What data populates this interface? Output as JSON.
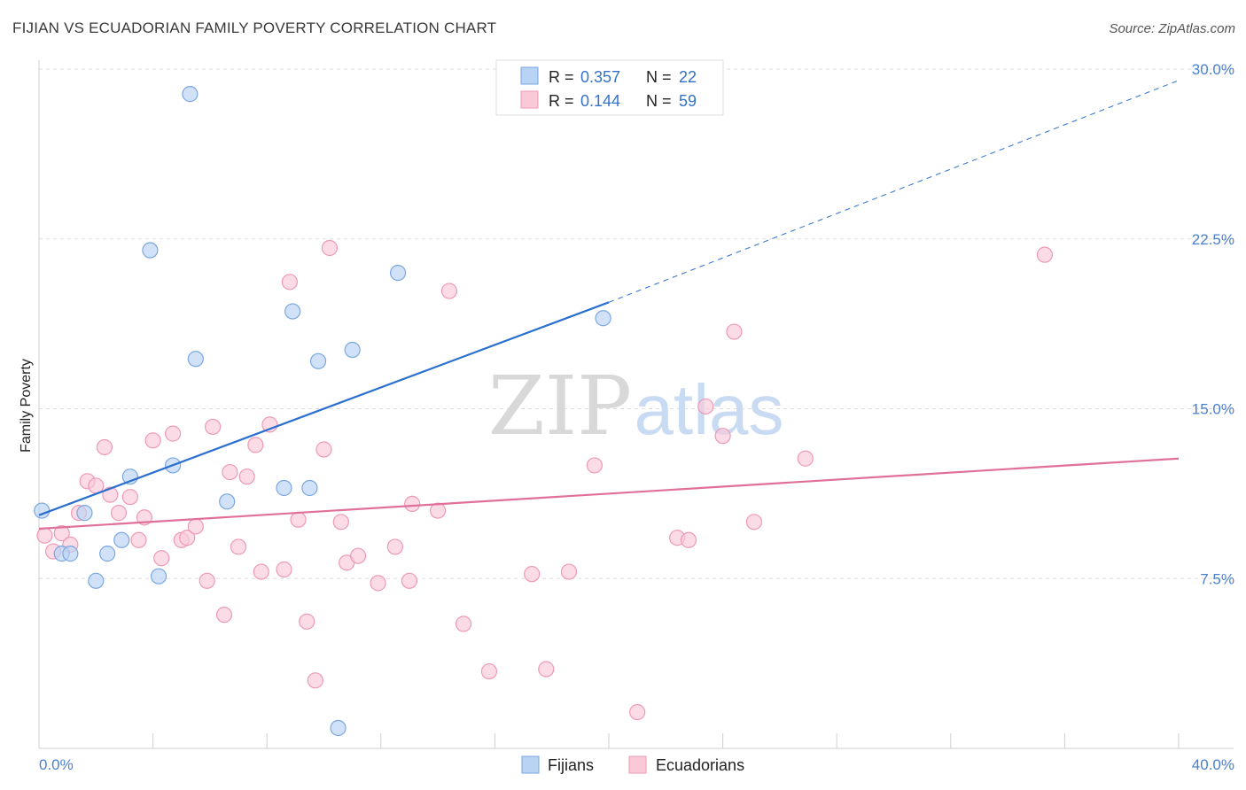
{
  "title": "FIJIAN VS ECUADORIAN FAMILY POVERTY CORRELATION CHART",
  "source": "Source: ZipAtlas.com",
  "watermark": {
    "zip": "ZIP",
    "atlas": "atlas"
  },
  "legend": {
    "r_label": "R =",
    "n_label": "N =",
    "rows": [
      {
        "r": "0.357",
        "n": "22",
        "fill": "#b8d3f4",
        "stroke": "#7aa7e0"
      },
      {
        "r": "0.144",
        "n": "59",
        "fill": "#f9c9d8",
        "stroke": "#ee9ab5"
      }
    ]
  },
  "chart_data": {
    "type": "scatter",
    "title": "FIJIAN VS ECUADORIAN FAMILY POVERTY CORRELATION CHART",
    "xlabel": "",
    "ylabel": "Family Poverty",
    "xlim": [
      0,
      40
    ],
    "ylim": [
      0,
      30
    ],
    "x_tick_labels": [
      "0.0%",
      "40.0%"
    ],
    "y_ticks": [
      7.5,
      15.0,
      22.5,
      30.0
    ],
    "y_tick_labels": [
      "7.5%",
      "15.0%",
      "22.5%",
      "30.0%"
    ],
    "grid": true,
    "legend_position": "top-center",
    "series": [
      {
        "name": "Fijians",
        "color": "#7aa7e0",
        "fill": "#b8d3f4",
        "trend_color": "#2b6fce",
        "trend": {
          "x0": 0,
          "y0": 10.3,
          "x1": 20,
          "y1": 19.7,
          "dashed_to_x": 40,
          "dashed_to_y": 29.5
        },
        "points": [
          [
            0.1,
            10.5
          ],
          [
            0.8,
            8.6
          ],
          [
            1.1,
            8.6
          ],
          [
            1.6,
            10.4
          ],
          [
            2.0,
            7.4
          ],
          [
            2.4,
            8.6
          ],
          [
            2.9,
            9.2
          ],
          [
            3.2,
            12.0
          ],
          [
            3.9,
            22.0
          ],
          [
            4.2,
            7.6
          ],
          [
            4.7,
            12.5
          ],
          [
            5.3,
            28.9
          ],
          [
            5.5,
            17.2
          ],
          [
            6.6,
            10.9
          ],
          [
            8.6,
            11.5
          ],
          [
            8.9,
            19.3
          ],
          [
            9.5,
            11.5
          ],
          [
            9.8,
            17.1
          ],
          [
            10.5,
            0.9
          ],
          [
            11.0,
            17.6
          ],
          [
            12.6,
            21.0
          ],
          [
            19.8,
            19.0
          ]
        ]
      },
      {
        "name": "Ecuadorians",
        "color": "#ee9ab5",
        "fill": "#f9c9d8",
        "trend_color": "#e0709a",
        "trend": {
          "x0": 0,
          "y0": 9.7,
          "x1": 40,
          "y1": 12.8
        },
        "points": [
          [
            0.2,
            9.4
          ],
          [
            0.5,
            8.7
          ],
          [
            0.8,
            9.5
          ],
          [
            1.1,
            9.0
          ],
          [
            1.4,
            10.4
          ],
          [
            1.7,
            11.8
          ],
          [
            2.0,
            11.6
          ],
          [
            2.3,
            13.3
          ],
          [
            2.5,
            11.2
          ],
          [
            2.8,
            10.4
          ],
          [
            3.2,
            11.1
          ],
          [
            3.5,
            9.2
          ],
          [
            3.7,
            10.2
          ],
          [
            4.0,
            13.6
          ],
          [
            4.3,
            8.4
          ],
          [
            4.7,
            13.9
          ],
          [
            5.0,
            9.2
          ],
          [
            5.2,
            9.3
          ],
          [
            5.5,
            9.8
          ],
          [
            5.9,
            7.4
          ],
          [
            6.1,
            14.2
          ],
          [
            6.5,
            5.9
          ],
          [
            6.7,
            12.2
          ],
          [
            7.0,
            8.9
          ],
          [
            7.3,
            12.0
          ],
          [
            7.6,
            13.4
          ],
          [
            7.8,
            7.8
          ],
          [
            8.1,
            14.3
          ],
          [
            8.6,
            7.9
          ],
          [
            8.8,
            20.6
          ],
          [
            9.1,
            10.1
          ],
          [
            9.4,
            5.6
          ],
          [
            9.7,
            3.0
          ],
          [
            10.0,
            13.2
          ],
          [
            10.2,
            22.1
          ],
          [
            10.6,
            10.0
          ],
          [
            10.8,
            8.2
          ],
          [
            11.2,
            8.5
          ],
          [
            11.9,
            7.3
          ],
          [
            12.5,
            8.9
          ],
          [
            13.0,
            7.4
          ],
          [
            13.1,
            10.8
          ],
          [
            14.0,
            10.5
          ],
          [
            14.4,
            20.2
          ],
          [
            14.9,
            5.5
          ],
          [
            15.8,
            3.4
          ],
          [
            17.3,
            7.7
          ],
          [
            17.8,
            3.5
          ],
          [
            18.6,
            7.8
          ],
          [
            19.5,
            12.5
          ],
          [
            21.0,
            1.6
          ],
          [
            22.4,
            9.3
          ],
          [
            22.8,
            9.2
          ],
          [
            23.4,
            15.1
          ],
          [
            24.0,
            13.8
          ],
          [
            24.4,
            18.4
          ],
          [
            25.1,
            10.0
          ],
          [
            26.9,
            12.8
          ],
          [
            35.3,
            21.8
          ]
        ]
      }
    ]
  }
}
